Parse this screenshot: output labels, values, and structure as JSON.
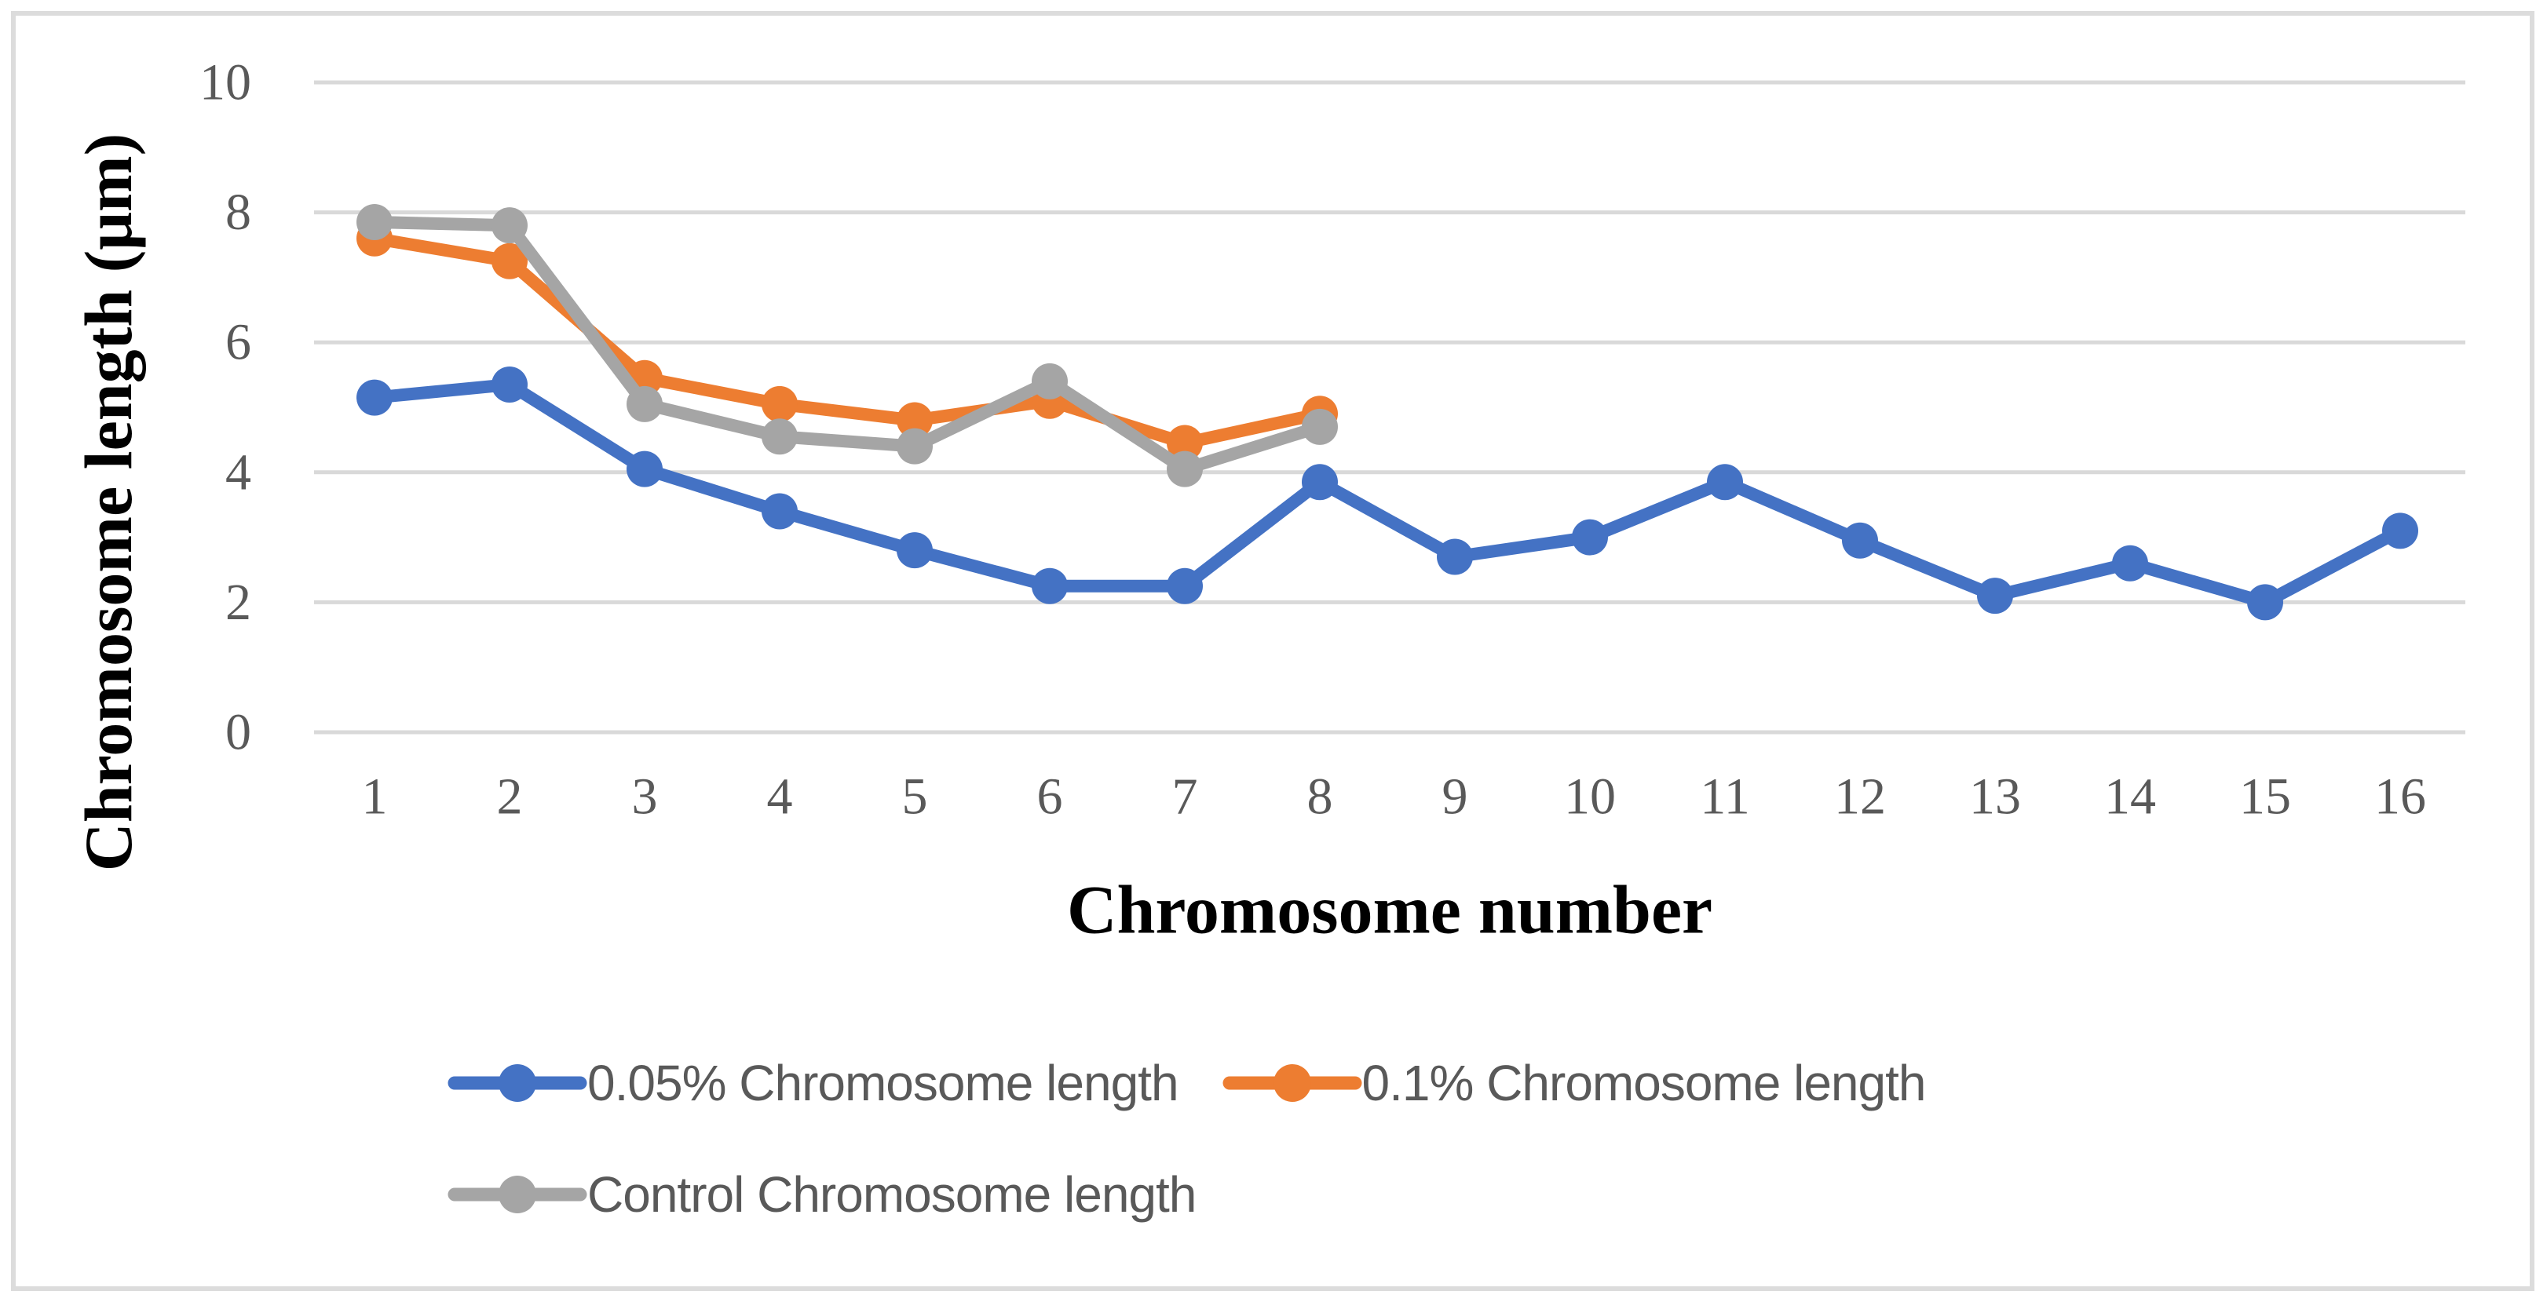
{
  "figure": {
    "background": "#ffffff",
    "border_color": "#dcdcdc"
  },
  "theme": {
    "gridline_color": "#d9d9d9",
    "tick_label_color": "#595959",
    "legend_text_color": "#595959",
    "axis_title_color": "#000000"
  },
  "y_axis": {
    "title": "Chromosome length (μm)",
    "ticks": [
      0,
      2,
      4,
      6,
      8,
      10
    ]
  },
  "x_axis": {
    "title": "Chromosome number",
    "ticks": [
      "1",
      "2",
      "3",
      "4",
      "5",
      "6",
      "7",
      "8",
      "9",
      "10",
      "11",
      "12",
      "13",
      "14",
      "15",
      "16"
    ]
  },
  "chart_data": {
    "type": "line",
    "title": "",
    "xlabel": "Chromosome number",
    "ylabel": "Chromosome length (μm)",
    "ylim": [
      0,
      10
    ],
    "yticks": [
      0,
      2,
      4,
      6,
      8,
      10
    ],
    "grid": true,
    "legend_position": "bottom-left",
    "categories": [
      1,
      2,
      3,
      4,
      5,
      6,
      7,
      8,
      9,
      10,
      11,
      12,
      13,
      14,
      15,
      16
    ],
    "series": [
      {
        "name": "0.05% Chromosome length",
        "color": "#4472c4",
        "values": [
          5.15,
          5.35,
          4.05,
          3.4,
          2.8,
          2.25,
          2.25,
          3.85,
          2.7,
          3.0,
          3.85,
          2.95,
          2.1,
          2.6,
          2.0,
          3.1
        ]
      },
      {
        "name": "0.1% Chromosome length",
        "color": "#ed7d31",
        "values": [
          7.6,
          7.25,
          5.45,
          5.05,
          4.8,
          5.1,
          4.45,
          4.9
        ]
      },
      {
        "name": "Control Chromosome length",
        "color": "#a5a5a5",
        "values": [
          7.85,
          7.8,
          5.05,
          4.55,
          4.4,
          5.4,
          4.05,
          4.7
        ]
      }
    ]
  }
}
